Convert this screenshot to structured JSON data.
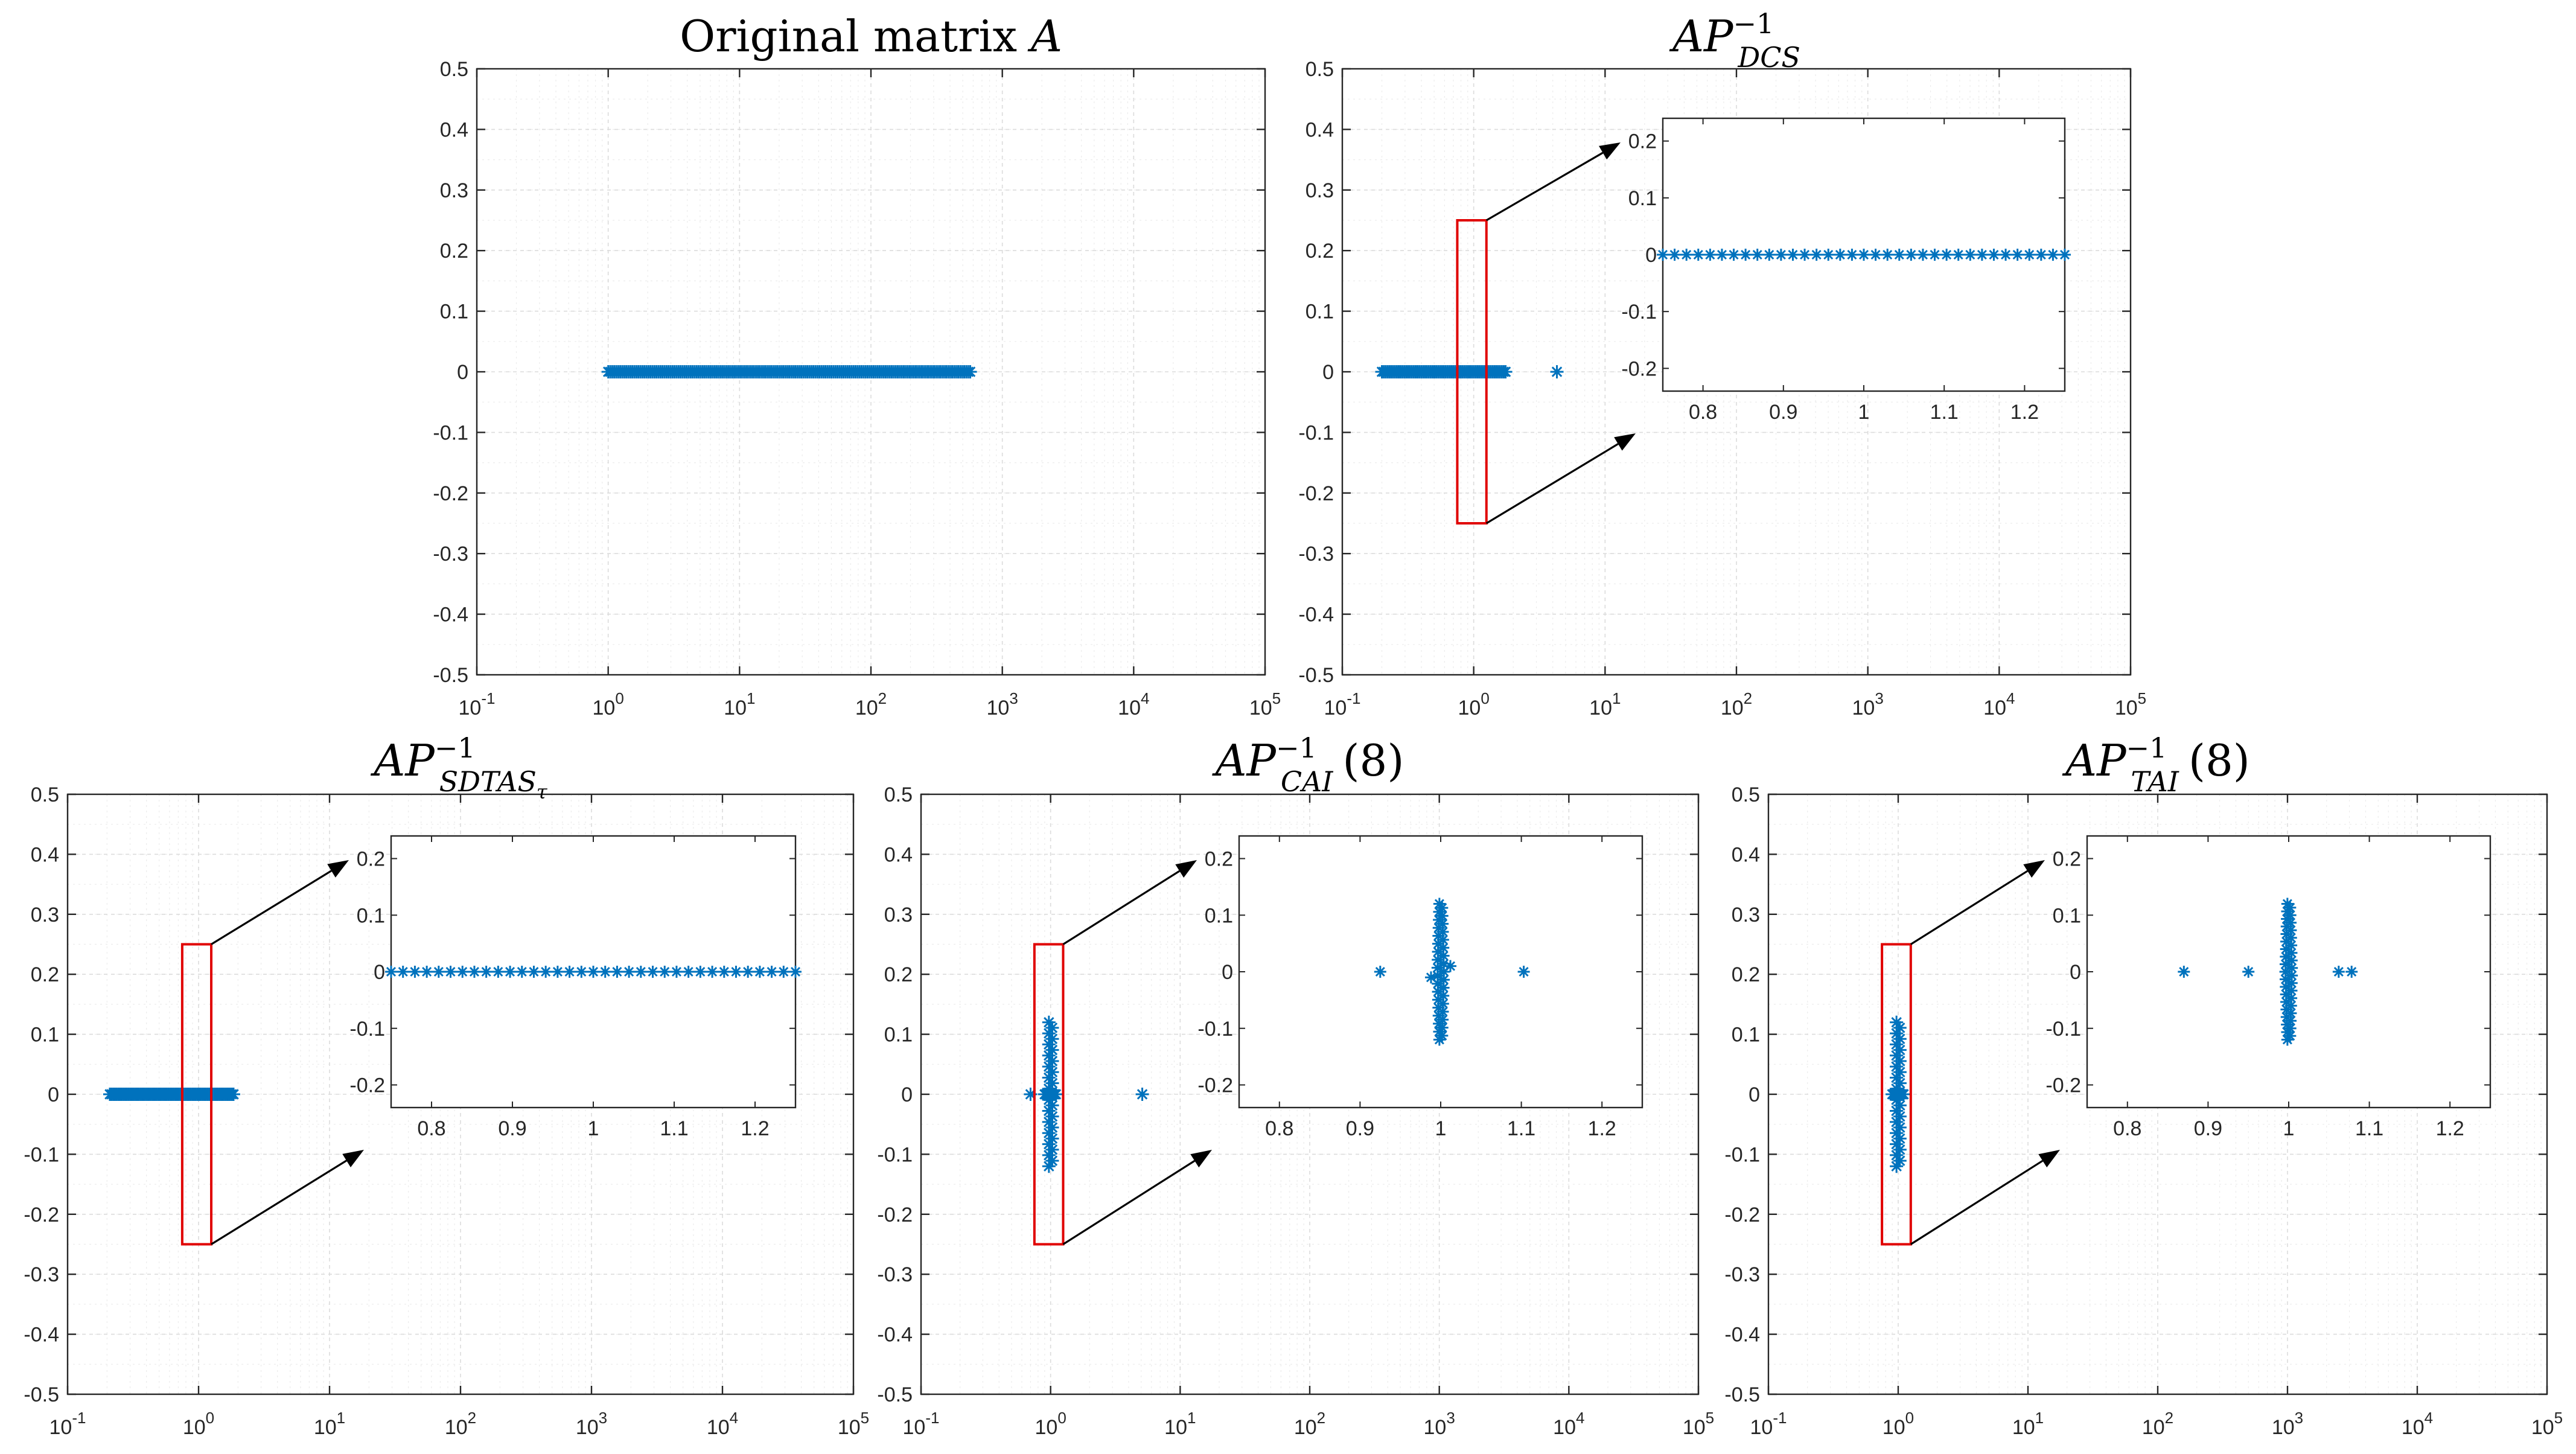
{
  "figure": "Eigenvalue distribution comparison",
  "colors": {
    "marker": "#0072BD",
    "zoom_box": "#e00000",
    "arrow": "#000000"
  },
  "chart_data": [
    {
      "id": "A",
      "type": "scatter",
      "title_main": "Original matrix ",
      "title_var": "A",
      "title_sub": "",
      "title_sup": "",
      "title_tail": "",
      "xscale": "log",
      "xlim": [
        0.1,
        100000
      ],
      "ylim": [
        -0.5,
        0.5
      ],
      "x_ticks": [
        0.1,
        1,
        10,
        100,
        1000,
        10000,
        100000
      ],
      "x_tick_labels": [
        [
          "10",
          "-1"
        ],
        [
          "10",
          "0"
        ],
        [
          "10",
          "1"
        ],
        [
          "10",
          "2"
        ],
        [
          "10",
          "3"
        ],
        [
          "10",
          "4"
        ],
        [
          "10",
          "5"
        ]
      ],
      "y_ticks": [
        -0.5,
        -0.4,
        -0.3,
        -0.2,
        -0.1,
        0,
        0.1,
        0.2,
        0.3,
        0.4,
        0.5
      ],
      "y_tick_labels": [
        "-0.5",
        "-0.4",
        "-0.3",
        "-0.2",
        "-0.1",
        "0",
        "0.1",
        "0.2",
        "0.3",
        "0.4",
        "0.5"
      ],
      "grid": true,
      "marker": "*",
      "points": {
        "band": {
          "xmin": 1.0,
          "xmax": 570,
          "y": 0,
          "count": 60
        },
        "extra": []
      },
      "inset": null
    },
    {
      "id": "DCS",
      "type": "scatter",
      "title_main": "",
      "title_var": "AP",
      "title_sub": "DCS",
      "title_sup": "−1",
      "title_tail": "",
      "xscale": "log",
      "xlim": [
        0.1,
        100000
      ],
      "ylim": [
        -0.5,
        0.5
      ],
      "x_ticks": [
        0.1,
        1,
        10,
        100,
        1000,
        10000,
        100000
      ],
      "x_tick_labels": [
        [
          "10",
          "-1"
        ],
        [
          "10",
          "0"
        ],
        [
          "10",
          "1"
        ],
        [
          "10",
          "2"
        ],
        [
          "10",
          "3"
        ],
        [
          "10",
          "4"
        ],
        [
          "10",
          "5"
        ]
      ],
      "y_ticks": [
        -0.5,
        -0.4,
        -0.3,
        -0.2,
        -0.1,
        0,
        0.1,
        0.2,
        0.3,
        0.4,
        0.5
      ],
      "y_tick_labels": [
        "-0.5",
        "-0.4",
        "-0.3",
        "-0.2",
        "-0.1",
        "0",
        "0.1",
        "0.2",
        "0.3",
        "0.4",
        "0.5"
      ],
      "grid": true,
      "marker": "*",
      "points": {
        "band": {
          "xmin": 0.2,
          "xmax": 1.75,
          "y": 0,
          "count": 22
        },
        "extra": [
          {
            "x": 4.3,
            "y": 0
          }
        ]
      },
      "zoom_region": {
        "x": [
          0.75,
          1.25
        ],
        "y": [
          -0.25,
          0.25
        ]
      },
      "inset": {
        "xlim": [
          0.75,
          1.25
        ],
        "ylim": [
          -0.24,
          0.24
        ],
        "x_ticks": [
          0.8,
          0.9,
          1,
          1.1,
          1.2
        ],
        "x_tick_labels": [
          "0.8",
          "0.9",
          "1",
          "1.1",
          "1.2"
        ],
        "y_ticks": [
          -0.2,
          -0.1,
          0,
          0.1,
          0.2
        ],
        "y_tick_labels": [
          "-0.2",
          "-0.1",
          "0",
          "0.1",
          "0.2"
        ],
        "points": {
          "band": {
            "xmin": 0.75,
            "xmax": 1.25,
            "y": 0,
            "count": 34
          },
          "vertical": []
        }
      }
    },
    {
      "id": "SDTAS",
      "type": "scatter",
      "title_main": "",
      "title_var": "AP",
      "title_sub": "SDTAS",
      "title_subsub": "τ",
      "title_sup": "−1",
      "title_tail": "",
      "xscale": "log",
      "xlim": [
        0.1,
        100000
      ],
      "ylim": [
        -0.5,
        0.5
      ],
      "x_ticks": [
        0.1,
        1,
        10,
        100,
        1000,
        10000,
        100000
      ],
      "x_tick_labels": [
        [
          "10",
          "-1"
        ],
        [
          "10",
          "0"
        ],
        [
          "10",
          "1"
        ],
        [
          "10",
          "2"
        ],
        [
          "10",
          "3"
        ],
        [
          "10",
          "4"
        ],
        [
          "10",
          "5"
        ]
      ],
      "y_ticks": [
        -0.5,
        -0.4,
        -0.3,
        -0.2,
        -0.1,
        0,
        0.1,
        0.2,
        0.3,
        0.4,
        0.5
      ],
      "y_tick_labels": [
        "-0.5",
        "-0.4",
        "-0.3",
        "-0.2",
        "-0.1",
        "0",
        "0.1",
        "0.2",
        "0.3",
        "0.4",
        "0.5"
      ],
      "grid": true,
      "marker": "*",
      "points": {
        "band": {
          "xmin": 0.21,
          "xmax": 1.85,
          "y": 0,
          "count": 24
        },
        "extra": []
      },
      "zoom_region": {
        "x": [
          0.75,
          1.25
        ],
        "y": [
          -0.25,
          0.25
        ]
      },
      "inset": {
        "xlim": [
          0.75,
          1.25
        ],
        "ylim": [
          -0.24,
          0.24
        ],
        "x_ticks": [
          0.8,
          0.9,
          1,
          1.1,
          1.2
        ],
        "x_tick_labels": [
          "0.8",
          "0.9",
          "1",
          "1.1",
          "1.2"
        ],
        "y_ticks": [
          -0.2,
          -0.1,
          0,
          0.1,
          0.2
        ],
        "y_tick_labels": [
          "-0.2",
          "-0.1",
          "0",
          "0.1",
          "0.2"
        ],
        "points": {
          "band": {
            "xmin": 0.75,
            "xmax": 1.25,
            "y": 0,
            "count": 34
          },
          "vertical": []
        }
      }
    },
    {
      "id": "CAI",
      "type": "scatter",
      "title_main": "",
      "title_var": "AP",
      "title_sub": "CAI",
      "title_sup": "−1",
      "title_tail": "(8)",
      "xscale": "log",
      "xlim": [
        0.1,
        100000
      ],
      "ylim": [
        -0.5,
        0.5
      ],
      "x_ticks": [
        0.1,
        1,
        10,
        100,
        1000,
        10000,
        100000
      ],
      "x_tick_labels": [
        [
          "10",
          "-1"
        ],
        [
          "10",
          "0"
        ],
        [
          "10",
          "1"
        ],
        [
          "10",
          "2"
        ],
        [
          "10",
          "3"
        ],
        [
          "10",
          "4"
        ],
        [
          "10",
          "5"
        ]
      ],
      "y_ticks": [
        -0.5,
        -0.4,
        -0.3,
        -0.2,
        -0.1,
        0,
        0.1,
        0.2,
        0.3,
        0.4,
        0.5
      ],
      "y_tick_labels": [
        "-0.5",
        "-0.4",
        "-0.3",
        "-0.2",
        "-0.1",
        "0",
        "0.1",
        "0.2",
        "0.3",
        "0.4",
        "0.5"
      ],
      "grid": true,
      "marker": "*",
      "points": {
        "vertical": {
          "x": 1.0,
          "ymin": -0.12,
          "ymax": 0.12,
          "count": 26
        },
        "extra": [
          {
            "x": 0.7,
            "y": 0
          },
          {
            "x": 5.1,
            "y": 0
          }
        ]
      },
      "zoom_region": {
        "x": [
          0.75,
          1.25
        ],
        "y": [
          -0.25,
          0.25
        ]
      },
      "inset": {
        "xlim": [
          0.75,
          1.25
        ],
        "ylim": [
          -0.24,
          0.24
        ],
        "x_ticks": [
          0.8,
          0.9,
          1,
          1.1,
          1.2
        ],
        "x_tick_labels": [
          "0.8",
          "0.9",
          "1",
          "1.1",
          "1.2"
        ],
        "y_ticks": [
          -0.2,
          -0.1,
          0,
          0.1,
          0.2
        ],
        "y_tick_labels": [
          "-0.2",
          "-0.1",
          "0",
          "0.1",
          "0.2"
        ],
        "points": {
          "band": null,
          "vertical": [
            {
              "x": 1.0,
              "ymin": -0.12,
              "ymax": 0.12,
              "count": 34
            }
          ],
          "extra": [
            {
              "x": 0.925,
              "y": 0
            },
            {
              "x": 1.103,
              "y": 0
            },
            {
              "x": 1.012,
              "y": 0.01
            },
            {
              "x": 0.988,
              "y": -0.01
            }
          ]
        }
      }
    },
    {
      "id": "TAI",
      "type": "scatter",
      "title_main": "",
      "title_var": "AP",
      "title_sub": "TAI",
      "title_sup": "−1",
      "title_tail": "(8)",
      "xscale": "log",
      "xlim": [
        0.1,
        100000
      ],
      "ylim": [
        -0.5,
        0.5
      ],
      "x_ticks": [
        0.1,
        1,
        10,
        100,
        1000,
        10000,
        100000
      ],
      "x_tick_labels": [
        [
          "10",
          "-1"
        ],
        [
          "10",
          "0"
        ],
        [
          "10",
          "1"
        ],
        [
          "10",
          "2"
        ],
        [
          "10",
          "3"
        ],
        [
          "10",
          "4"
        ],
        [
          "10",
          "5"
        ]
      ],
      "y_ticks": [
        -0.5,
        -0.4,
        -0.3,
        -0.2,
        -0.1,
        0,
        0.1,
        0.2,
        0.3,
        0.4,
        0.5
      ],
      "y_tick_labels": [
        "-0.5",
        "-0.4",
        "-0.3",
        "-0.2",
        "-0.1",
        "0",
        "0.1",
        "0.2",
        "0.3",
        "0.4",
        "0.5"
      ],
      "grid": true,
      "marker": "*",
      "points": {
        "vertical": {
          "x": 1.0,
          "ymin": -0.12,
          "ymax": 0.12,
          "count": 26
        },
        "extra": []
      },
      "zoom_region": {
        "x": [
          0.75,
          1.25
        ],
        "y": [
          -0.25,
          0.25
        ]
      },
      "inset": {
        "xlim": [
          0.75,
          1.25
        ],
        "ylim": [
          -0.24,
          0.24
        ],
        "x_ticks": [
          0.8,
          0.9,
          1,
          1.1,
          1.2
        ],
        "x_tick_labels": [
          "0.8",
          "0.9",
          "1",
          "1.1",
          "1.2"
        ],
        "y_ticks": [
          -0.2,
          -0.1,
          0,
          0.1,
          0.2
        ],
        "y_tick_labels": [
          "-0.2",
          "-0.1",
          "0",
          "0.1",
          "0.2"
        ],
        "points": {
          "band": null,
          "vertical": [
            {
              "x": 1.0,
              "ymin": -0.12,
              "ymax": 0.12,
              "count": 36
            }
          ],
          "extra": [
            {
              "x": 0.87,
              "y": 0
            },
            {
              "x": 0.95,
              "y": 0
            },
            {
              "x": 1.062,
              "y": 0
            },
            {
              "x": 1.078,
              "y": 0
            }
          ]
        }
      }
    }
  ]
}
